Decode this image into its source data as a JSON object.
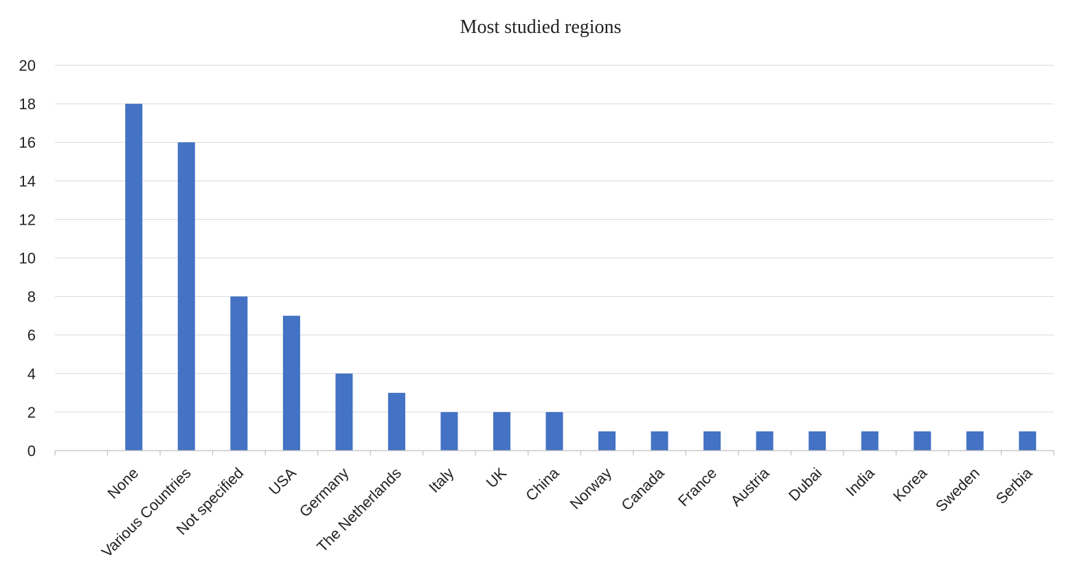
{
  "chart_data": {
    "type": "bar",
    "title": "Most studied regions",
    "xlabel": "",
    "ylabel": "",
    "ylim": [
      0,
      20
    ],
    "yticks": [
      0,
      2,
      4,
      6,
      8,
      10,
      12,
      14,
      16,
      18,
      20
    ],
    "grid": true,
    "legend": "none",
    "bar_color": "#4472C4",
    "categories": [
      "None",
      "Various Countries",
      "Not specified",
      "USA",
      "Germany",
      "The Netherlands",
      "Italy",
      "UK",
      "China",
      "Norway",
      "Canada",
      "France",
      "Austria",
      "Dubai",
      "India",
      "Korea",
      "Sweden",
      "Serbia"
    ],
    "values": [
      18,
      16,
      8,
      7,
      4,
      3,
      2,
      2,
      2,
      1,
      1,
      1,
      1,
      1,
      1,
      1,
      1,
      1
    ]
  }
}
